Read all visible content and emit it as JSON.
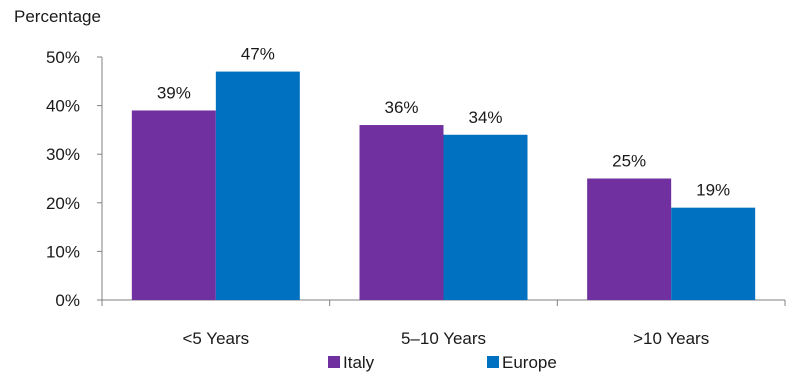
{
  "chart_data": {
    "type": "bar",
    "ylabel": "Percentage",
    "categories": [
      "<5 Years",
      "5–10 Years",
      ">10 Years"
    ],
    "series": [
      {
        "name": "Italy",
        "values": [
          39,
          36,
          25
        ],
        "labels": [
          "39%",
          "36%",
          "25%"
        ],
        "color": "#7030a0"
      },
      {
        "name": "Europe",
        "values": [
          47,
          34,
          19
        ],
        "labels": [
          "47%",
          "34%",
          "19%"
        ],
        "color": "#0070c0"
      }
    ],
    "ylim": [
      0,
      50
    ],
    "yticks": [
      "0%",
      "10%",
      "20%",
      "30%",
      "40%",
      "50%"
    ],
    "grid": false,
    "legend_position": "bottom-center"
  }
}
